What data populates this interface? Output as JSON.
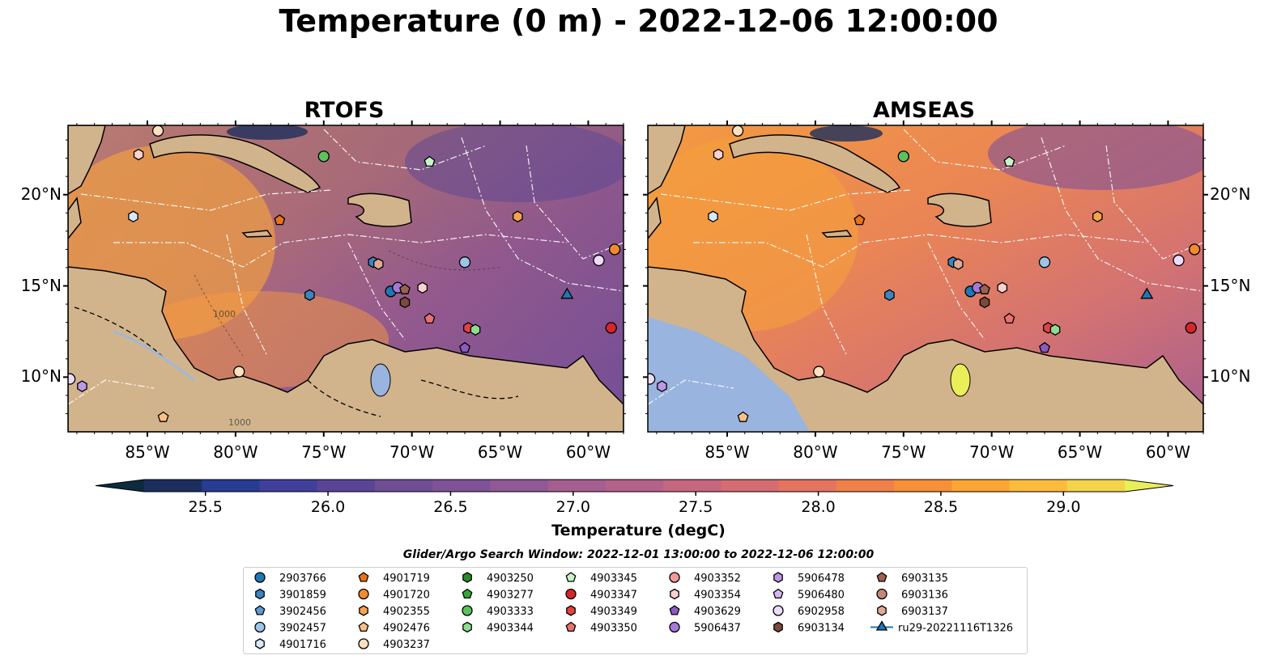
{
  "title": "Temperature (0 m) - 2022-12-06 12:00:00",
  "panels": [
    {
      "title": "RTOFS"
    },
    {
      "title": "AMSEAS"
    }
  ],
  "axes": {
    "lon_ticks": [
      "85°W",
      "80°W",
      "75°W",
      "70°W",
      "65°W",
      "60°W"
    ],
    "lat_ticks": [
      "20°N",
      "15°N",
      "10°N"
    ],
    "lon_range": [
      -89.5,
      -58.0
    ],
    "lat_range": [
      7.0,
      23.8
    ]
  },
  "colorbar": {
    "label": "Temperature (degC)",
    "ticks": [
      "25.5",
      "26.0",
      "26.5",
      "27.0",
      "27.5",
      "28.0",
      "28.5",
      "29.0"
    ],
    "range": [
      25.25,
      29.25
    ],
    "step": 0.25,
    "extend": "both",
    "colormap": "thermal",
    "colors": [
      "#0d2b3e",
      "#1c2e5e",
      "#283c93",
      "#40409c",
      "#5a4496",
      "#6e4d95",
      "#7e5297",
      "#8f5995",
      "#a45e90",
      "#b4628a",
      "#c66780",
      "#d56c72",
      "#e47360",
      "#ef8049",
      "#f79038",
      "#fba535",
      "#fbbc3b",
      "#f4d449",
      "#e9ee59"
    ]
  },
  "contours": {
    "labels": [
      "1000",
      "1000"
    ]
  },
  "legend": {
    "title": "Glider/Argo Search Window: 2022-12-01 13:00:00 to 2022-12-06 12:00:00",
    "columns": [
      [
        {
          "label": "2903766",
          "marker": "circle",
          "color": "#1f77b4"
        },
        {
          "label": "3901859",
          "marker": "hexagon",
          "color": "#3a85c2"
        },
        {
          "label": "3902456",
          "marker": "pentagon",
          "color": "#5f9bd2"
        },
        {
          "label": "3902457",
          "marker": "circle",
          "color": "#9ec5e8"
        },
        {
          "label": "4901716",
          "marker": "hexagon",
          "color": "#d7e8f7"
        }
      ],
      [
        {
          "label": "4901719",
          "marker": "pentagon",
          "color": "#e8731a"
        },
        {
          "label": "4901720",
          "marker": "circle",
          "color": "#f28a2e"
        },
        {
          "label": "4902355",
          "marker": "hexagon",
          "color": "#f6a34f"
        },
        {
          "label": "4902476",
          "marker": "pentagon",
          "color": "#f8c088"
        },
        {
          "label": "4903237",
          "marker": "circle",
          "color": "#fde0c0"
        }
      ],
      [
        {
          "label": "4903250",
          "marker": "hexagon",
          "color": "#2a8a2a"
        },
        {
          "label": "4903277",
          "marker": "pentagon",
          "color": "#3aa63a"
        },
        {
          "label": "4903333",
          "marker": "circle",
          "color": "#5cc25c"
        },
        {
          "label": "4903344",
          "marker": "hexagon",
          "color": "#8fdc8f"
        }
      ],
      [
        {
          "label": "4903345",
          "marker": "pentagon",
          "color": "#c8f3c8"
        },
        {
          "label": "4903347",
          "marker": "circle",
          "color": "#d62728"
        },
        {
          "label": "4903349",
          "marker": "hexagon",
          "color": "#e04343"
        },
        {
          "label": "4903350",
          "marker": "pentagon",
          "color": "#ec7070"
        }
      ],
      [
        {
          "label": "4903352",
          "marker": "circle",
          "color": "#f29a9a"
        },
        {
          "label": "4903354",
          "marker": "hexagon",
          "color": "#fbd0d0"
        },
        {
          "label": "4903629",
          "marker": "pentagon",
          "color": "#8a5cc0"
        },
        {
          "label": "5906437",
          "marker": "circle",
          "color": "#a57ad6"
        }
      ],
      [
        {
          "label": "5906478",
          "marker": "hexagon",
          "color": "#bd98e4"
        },
        {
          "label": "5906480",
          "marker": "pentagon",
          "color": "#d5b8f0"
        },
        {
          "label": "6902958",
          "marker": "circle",
          "color": "#ecdcfb"
        },
        {
          "label": "6903134",
          "marker": "hexagon",
          "color": "#7a4a3c"
        }
      ],
      [
        {
          "label": "6903135",
          "marker": "pentagon",
          "color": "#9a6250"
        },
        {
          "label": "6903136",
          "marker": "circle",
          "color": "#c08a78"
        },
        {
          "label": "6903137",
          "marker": "hexagon",
          "color": "#e0aa98"
        },
        {
          "label": "ru29-20221116T1326",
          "marker": "triangle-line",
          "color": "#1f77b4"
        }
      ]
    ]
  },
  "floats": [
    {
      "id": "4903237",
      "lon": -84.4,
      "lat": 23.5
    },
    {
      "id": "4903354",
      "lon": -85.5,
      "lat": 22.2
    },
    {
      "id": "4901716",
      "lon": -85.8,
      "lat": 18.8
    },
    {
      "id": "4903333",
      "lon": -75.0,
      "lat": 22.1
    },
    {
      "id": "4903345",
      "lon": -69.0,
      "lat": 21.8
    },
    {
      "id": "4901719",
      "lon": -77.5,
      "lat": 18.6
    },
    {
      "id": "4902355",
      "lon": -64.0,
      "lat": 18.8
    },
    {
      "id": "3901859",
      "lon": -72.2,
      "lat": 16.3
    },
    {
      "id": "6903137",
      "lon": -71.9,
      "lat": 16.2
    },
    {
      "id": "3902457",
      "lon": -67.0,
      "lat": 16.3
    },
    {
      "id": "6902958",
      "lon": -59.4,
      "lat": 16.4
    },
    {
      "id": "4901720",
      "lon": -58.5,
      "lat": 17.0
    },
    {
      "id": "3901859",
      "lon": -75.8,
      "lat": 14.5
    },
    {
      "id": "2903766",
      "lon": -71.2,
      "lat": 14.7
    },
    {
      "id": "5906437",
      "lon": -70.8,
      "lat": 14.9
    },
    {
      "id": "6903135",
      "lon": -70.4,
      "lat": 14.8
    },
    {
      "id": "6903134",
      "lon": -70.4,
      "lat": 14.1
    },
    {
      "id": "4903354",
      "lon": -69.4,
      "lat": 14.9
    },
    {
      "id": "4903350",
      "lon": -69.0,
      "lat": 13.2
    },
    {
      "id": "4903349",
      "lon": -66.8,
      "lat": 12.7
    },
    {
      "id": "4903344",
      "lon": -66.4,
      "lat": 12.6
    },
    {
      "id": "4903629",
      "lon": -67.0,
      "lat": 11.6
    },
    {
      "id": "4903347",
      "lon": -58.7,
      "lat": 12.7
    },
    {
      "id": "4903237",
      "lon": -79.8,
      "lat": 10.3
    },
    {
      "id": "6902958",
      "lon": -89.4,
      "lat": 9.9
    },
    {
      "id": "5906478",
      "lon": -88.7,
      "lat": 9.5
    },
    {
      "id": "4902476",
      "lon": -84.1,
      "lat": 7.8
    }
  ],
  "glider": {
    "id": "ru29-20221116T1326",
    "lon": -61.2,
    "lat": 14.5
  }
}
